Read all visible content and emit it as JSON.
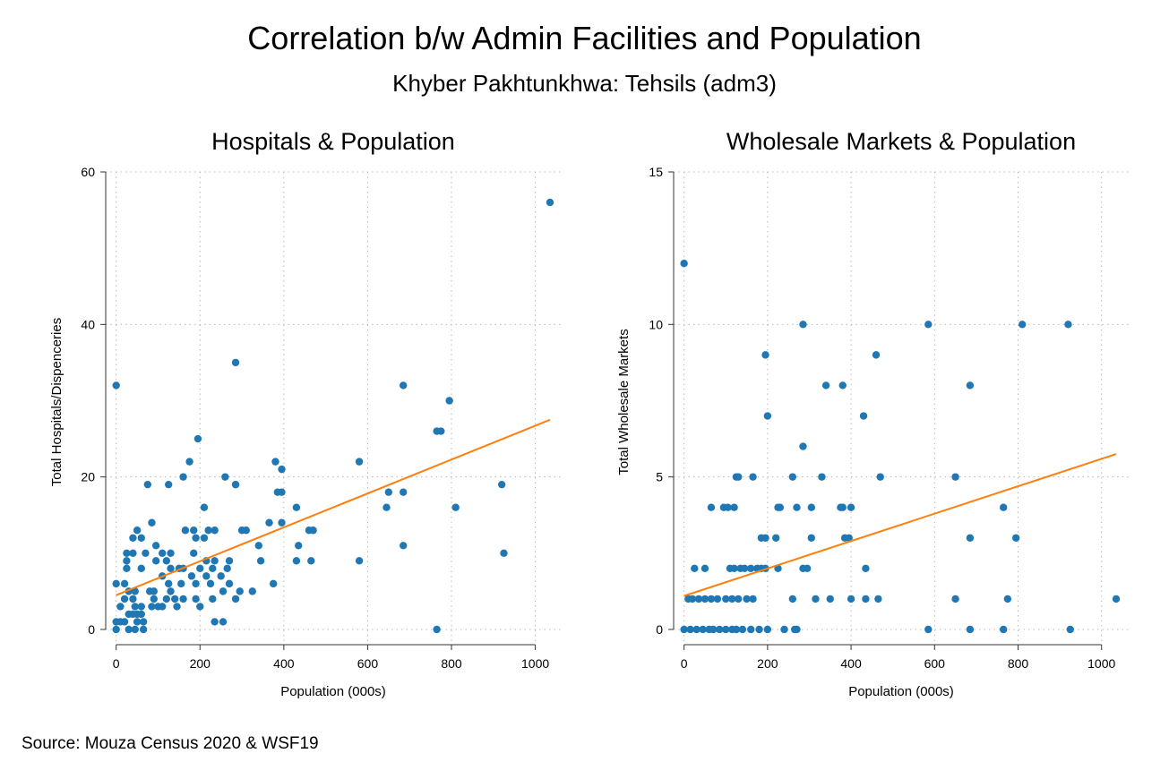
{
  "title": "Correlation b/w Admin Facilities and Population",
  "subtitle": "Khyber Pakhtunkhwa: Tehsils (adm3)",
  "note": "Source: Mouza Census 2020 & WSF19",
  "colors": {
    "points": "#1f77b4",
    "fit": "#ff7f0e",
    "grid": "#bbbbbb",
    "axis": "#333333"
  },
  "chart_data": [
    {
      "type": "scatter",
      "title": "Hospitals & Population",
      "xlabel": "Population (000s)",
      "ylabel": "Total Hospitals/Dispenceries",
      "xlim": [
        -25,
        1065
      ],
      "ylim": [
        -2,
        60
      ],
      "xticks": [
        0,
        200,
        400,
        600,
        800,
        1000
      ],
      "yticks": [
        0,
        20,
        40,
        60
      ],
      "grid": true,
      "fit_line": {
        "x": [
          0,
          1035
        ],
        "y": [
          4.5,
          27.5
        ]
      },
      "points": [
        [
          1035,
          56
        ],
        [
          0,
          32
        ],
        [
          285,
          35
        ],
        [
          685,
          32
        ],
        [
          795,
          30
        ],
        [
          765,
          26
        ],
        [
          775,
          26
        ],
        [
          195,
          25
        ],
        [
          380,
          22
        ],
        [
          580,
          22
        ],
        [
          175,
          22
        ],
        [
          395,
          21
        ],
        [
          160,
          20
        ],
        [
          260,
          20
        ],
        [
          285,
          19
        ],
        [
          285,
          19
        ],
        [
          75,
          19
        ],
        [
          125,
          19
        ],
        [
          920,
          19
        ],
        [
          385,
          18
        ],
        [
          395,
          18
        ],
        [
          650,
          18
        ],
        [
          685,
          18
        ],
        [
          210,
          16
        ],
        [
          430,
          16
        ],
        [
          810,
          16
        ],
        [
          645,
          16
        ],
        [
          365,
          14
        ],
        [
          395,
          14
        ],
        [
          85,
          14
        ],
        [
          300,
          13
        ],
        [
          310,
          13
        ],
        [
          460,
          13
        ],
        [
          470,
          13
        ],
        [
          165,
          13
        ],
        [
          185,
          13
        ],
        [
          220,
          13
        ],
        [
          235,
          13
        ],
        [
          50,
          13
        ],
        [
          40,
          12
        ],
        [
          210,
          12
        ],
        [
          60,
          12
        ],
        [
          190,
          12
        ],
        [
          340,
          11
        ],
        [
          435,
          11
        ],
        [
          95,
          11
        ],
        [
          685,
          11
        ],
        [
          925,
          10
        ],
        [
          25,
          10
        ],
        [
          40,
          10
        ],
        [
          70,
          10
        ],
        [
          110,
          10
        ],
        [
          130,
          10
        ],
        [
          185,
          10
        ],
        [
          580,
          9
        ],
        [
          430,
          9
        ],
        [
          465,
          9
        ],
        [
          345,
          9
        ],
        [
          215,
          9
        ],
        [
          235,
          9
        ],
        [
          270,
          9
        ],
        [
          120,
          9
        ],
        [
          95,
          9
        ],
        [
          25,
          9
        ],
        [
          150,
          8
        ],
        [
          160,
          8
        ],
        [
          200,
          8
        ],
        [
          230,
          8
        ],
        [
          265,
          8
        ],
        [
          25,
          8
        ],
        [
          60,
          8
        ],
        [
          130,
          8
        ],
        [
          295,
          5
        ],
        [
          325,
          5
        ],
        [
          110,
          7
        ],
        [
          180,
          7
        ],
        [
          215,
          7
        ],
        [
          250,
          7
        ],
        [
          20,
          6
        ],
        [
          270,
          6
        ],
        [
          375,
          6
        ],
        [
          125,
          6
        ],
        [
          155,
          6
        ],
        [
          190,
          6
        ],
        [
          225,
          6
        ],
        [
          0,
          6
        ],
        [
          30,
          5
        ],
        [
          45,
          5
        ],
        [
          80,
          5
        ],
        [
          90,
          5
        ],
        [
          130,
          5
        ],
        [
          255,
          5
        ],
        [
          285,
          4
        ],
        [
          20,
          4
        ],
        [
          40,
          4
        ],
        [
          90,
          4
        ],
        [
          120,
          4
        ],
        [
          140,
          4
        ],
        [
          160,
          4
        ],
        [
          190,
          4
        ],
        [
          230,
          4
        ],
        [
          10,
          3
        ],
        [
          45,
          3
        ],
        [
          60,
          3
        ],
        [
          85,
          3
        ],
        [
          100,
          3
        ],
        [
          110,
          3
        ],
        [
          145,
          3
        ],
        [
          200,
          3
        ],
        [
          0,
          1
        ],
        [
          10,
          1
        ],
        [
          20,
          1
        ],
        [
          50,
          1
        ],
        [
          65,
          1
        ],
        [
          30,
          2
        ],
        [
          40,
          2
        ],
        [
          50,
          2
        ],
        [
          60,
          2
        ],
        [
          30,
          0
        ],
        [
          45,
          0
        ],
        [
          65,
          0
        ],
        [
          0,
          0
        ],
        [
          235,
          1
        ],
        [
          255,
          1
        ],
        [
          765,
          0
        ]
      ]
    },
    {
      "type": "scatter",
      "title": "Wholesale Markets & Population",
      "xlabel": "Population (000s)",
      "ylabel": "Total Wholesale Markets",
      "xlim": [
        -25,
        1065
      ],
      "ylim": [
        -0.5,
        15
      ],
      "xticks": [
        0,
        200,
        400,
        600,
        800,
        1000
      ],
      "yticks": [
        0,
        5,
        10,
        15
      ],
      "grid": true,
      "fit_line": {
        "x": [
          0,
          1035
        ],
        "y": [
          1.1,
          5.75
        ]
      },
      "points": [
        [
          0,
          12
        ],
        [
          285,
          10
        ],
        [
          585,
          10
        ],
        [
          810,
          10
        ],
        [
          920,
          10
        ],
        [
          195,
          9
        ],
        [
          460,
          9
        ],
        [
          340,
          8
        ],
        [
          380,
          8
        ],
        [
          685,
          8
        ],
        [
          200,
          7
        ],
        [
          430,
          7
        ],
        [
          285,
          6
        ],
        [
          125,
          5
        ],
        [
          130,
          5
        ],
        [
          165,
          5
        ],
        [
          260,
          5
        ],
        [
          330,
          5
        ],
        [
          470,
          5
        ],
        [
          650,
          5
        ],
        [
          65,
          4
        ],
        [
          95,
          4
        ],
        [
          105,
          4
        ],
        [
          120,
          4
        ],
        [
          225,
          4
        ],
        [
          230,
          4
        ],
        [
          270,
          4
        ],
        [
          305,
          4
        ],
        [
          375,
          4
        ],
        [
          380,
          4
        ],
        [
          400,
          4
        ],
        [
          765,
          4
        ],
        [
          185,
          3
        ],
        [
          195,
          3
        ],
        [
          220,
          3
        ],
        [
          305,
          3
        ],
        [
          385,
          3
        ],
        [
          395,
          3
        ],
        [
          685,
          3
        ],
        [
          795,
          3
        ],
        [
          25,
          2
        ],
        [
          50,
          2
        ],
        [
          110,
          2
        ],
        [
          120,
          2
        ],
        [
          135,
          2
        ],
        [
          145,
          2
        ],
        [
          160,
          2
        ],
        [
          175,
          2
        ],
        [
          185,
          2
        ],
        [
          195,
          2
        ],
        [
          225,
          2
        ],
        [
          285,
          2
        ],
        [
          295,
          2
        ],
        [
          435,
          2
        ],
        [
          10,
          1
        ],
        [
          20,
          1
        ],
        [
          35,
          1
        ],
        [
          50,
          1
        ],
        [
          65,
          1
        ],
        [
          80,
          1
        ],
        [
          100,
          1
        ],
        [
          115,
          1
        ],
        [
          130,
          1
        ],
        [
          150,
          1
        ],
        [
          165,
          1
        ],
        [
          260,
          1
        ],
        [
          315,
          1
        ],
        [
          350,
          1
        ],
        [
          400,
          1
        ],
        [
          435,
          1
        ],
        [
          465,
          1
        ],
        [
          650,
          1
        ],
        [
          775,
          1
        ],
        [
          1035,
          1
        ],
        [
          0,
          0
        ],
        [
          15,
          0
        ],
        [
          30,
          0
        ],
        [
          45,
          0
        ],
        [
          60,
          0
        ],
        [
          70,
          0
        ],
        [
          85,
          0
        ],
        [
          100,
          0
        ],
        [
          115,
          0
        ],
        [
          125,
          0
        ],
        [
          140,
          0
        ],
        [
          160,
          0
        ],
        [
          180,
          0
        ],
        [
          200,
          0
        ],
        [
          240,
          0
        ],
        [
          265,
          0
        ],
        [
          270,
          0
        ],
        [
          585,
          0
        ],
        [
          685,
          0
        ],
        [
          765,
          0
        ],
        [
          925,
          0
        ]
      ]
    }
  ]
}
